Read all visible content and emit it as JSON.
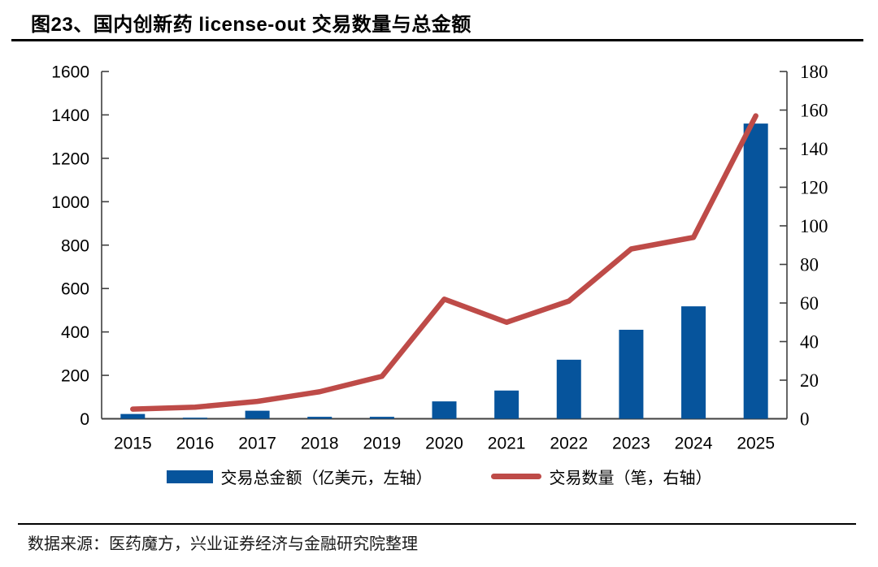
{
  "page": {
    "title": "图23、国内创新药 license-out 交易数量与总金额",
    "source_note": "数据来源：医药魔方，兴业证券经济与金融研究院整理"
  },
  "colors": {
    "bar": "#06549C",
    "line": "#BE4B48",
    "axis": "#404040",
    "text": "#000000"
  },
  "chart_data": {
    "type": "bar+line",
    "categories": [
      "2015",
      "2016",
      "2017",
      "2018",
      "2019",
      "2020",
      "2021",
      "2022",
      "2023",
      "2024",
      "2025"
    ],
    "series": [
      {
        "name": "交易总金额（亿美元，左轴）",
        "type": "bar",
        "axis": "left",
        "color": "#06549C",
        "values": [
          22,
          5,
          37,
          9,
          9,
          80,
          130,
          272,
          410,
          518,
          1360
        ]
      },
      {
        "name": "交易数量（笔，右轴）",
        "type": "line",
        "axis": "right",
        "color": "#BE4B48",
        "values": [
          5,
          6,
          9,
          14,
          22,
          62,
          50,
          61,
          88,
          94,
          157
        ]
      }
    ],
    "left_axis": {
      "min": 0,
      "max": 1600,
      "step": 200,
      "ticks": [
        0,
        200,
        400,
        600,
        800,
        1000,
        1200,
        1400,
        1600
      ]
    },
    "right_axis": {
      "min": 0,
      "max": 180,
      "step": 20,
      "ticks": [
        0,
        20,
        40,
        60,
        80,
        100,
        120,
        140,
        160,
        180
      ]
    },
    "grid": false,
    "legend_position": "bottom"
  }
}
